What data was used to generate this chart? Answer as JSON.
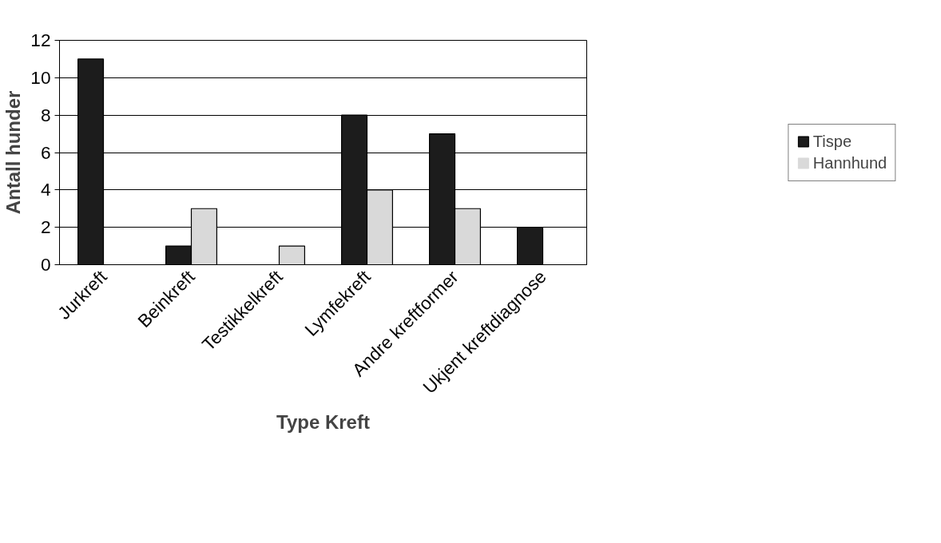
{
  "chart_data": {
    "type": "bar",
    "xlabel": "Type Kreft",
    "ylabel": "Antall hunder",
    "categories": [
      "Jurkreft",
      "Beinkreft",
      "Testikkelkreft",
      "Lymfekreft",
      "Andre kreftformer",
      "Ukjent kreftdiagnose"
    ],
    "series": [
      {
        "name": "Tispe",
        "color": "#1c1c1c",
        "values": [
          11,
          1,
          0,
          8,
          7,
          2
        ]
      },
      {
        "name": "Hannhund",
        "color": "#d9d9d9",
        "values": [
          0,
          3,
          1,
          4,
          3,
          0
        ]
      }
    ],
    "ylim": [
      0,
      12
    ],
    "yticks": [
      0,
      2,
      4,
      6,
      8,
      10,
      12
    ],
    "grid": "y",
    "legend": "right"
  }
}
